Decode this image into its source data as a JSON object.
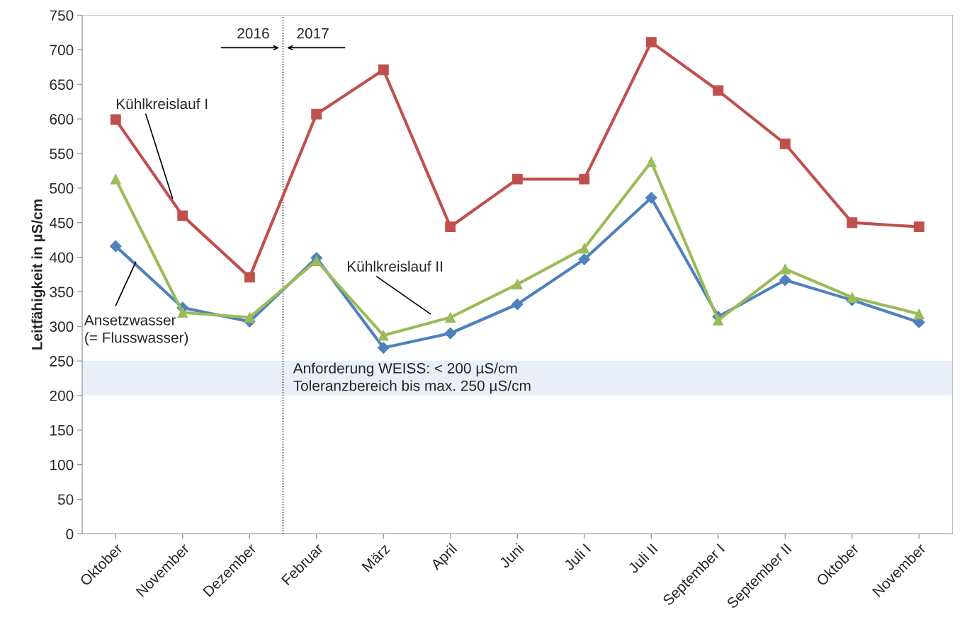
{
  "chart_data": {
    "type": "line",
    "ylabel": "Leitfähigkeit in µS/cm",
    "categories": [
      "Oktober",
      "November",
      "Dezember",
      "Februar",
      "März",
      "April",
      "Juni",
      "Juli I",
      "Juli II",
      "September I",
      "September II",
      "Oktober",
      "November"
    ],
    "series": [
      {
        "name": "Kühlkreislauf I",
        "color": "#c0504d",
        "marker": "square",
        "values": [
          599,
          460,
          371,
          607,
          671,
          444,
          513,
          513,
          711,
          641,
          564,
          450,
          444
        ]
      },
      {
        "name": "Ansetzwasser\n(= Flusswasser)",
        "color": "#4f81bd",
        "marker": "diamond",
        "values": [
          416,
          327,
          307,
          399,
          269,
          290,
          332,
          397,
          486,
          314,
          367,
          338,
          306
        ]
      },
      {
        "name": "Kühlkreislauf II",
        "color": "#9bbb59",
        "marker": "triangle",
        "values": [
          513,
          320,
          313,
          395,
          287,
          313,
          361,
          413,
          538,
          309,
          383,
          342,
          318
        ]
      }
    ],
    "ylim": [
      0,
      750
    ],
    "yticks": [
      0,
      50,
      100,
      150,
      200,
      250,
      300,
      350,
      400,
      450,
      500,
      550,
      600,
      650,
      700,
      750
    ],
    "bands": [
      {
        "axis": "y",
        "from": 200,
        "to": 250,
        "color": "#e9eef7",
        "label": "Anforderung WEISS: < 200 µS/cm\nToleranzbereich bis max. 250 µS/cm"
      }
    ],
    "annotations": [
      "2016",
      "2017"
    ],
    "grid": false,
    "legend": false,
    "line_style": "solid"
  }
}
